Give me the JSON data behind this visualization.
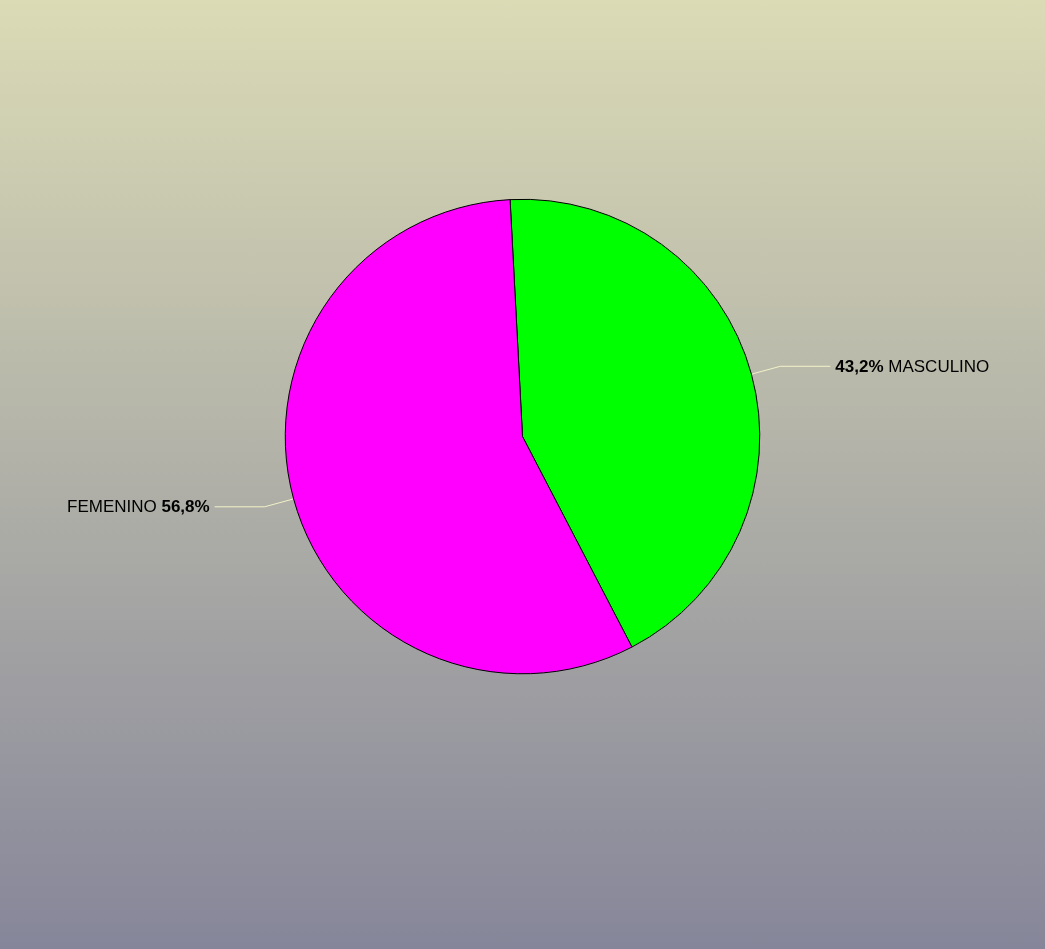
{
  "chart_data": {
    "type": "pie",
    "categories": [
      "MASCULINO",
      "FEMENINO"
    ],
    "values": [
      43.2,
      56.8
    ],
    "colors": [
      "#00ff00",
      "#ff00ff"
    ],
    "value_labels": [
      "43,2%",
      "56,8%"
    ]
  }
}
